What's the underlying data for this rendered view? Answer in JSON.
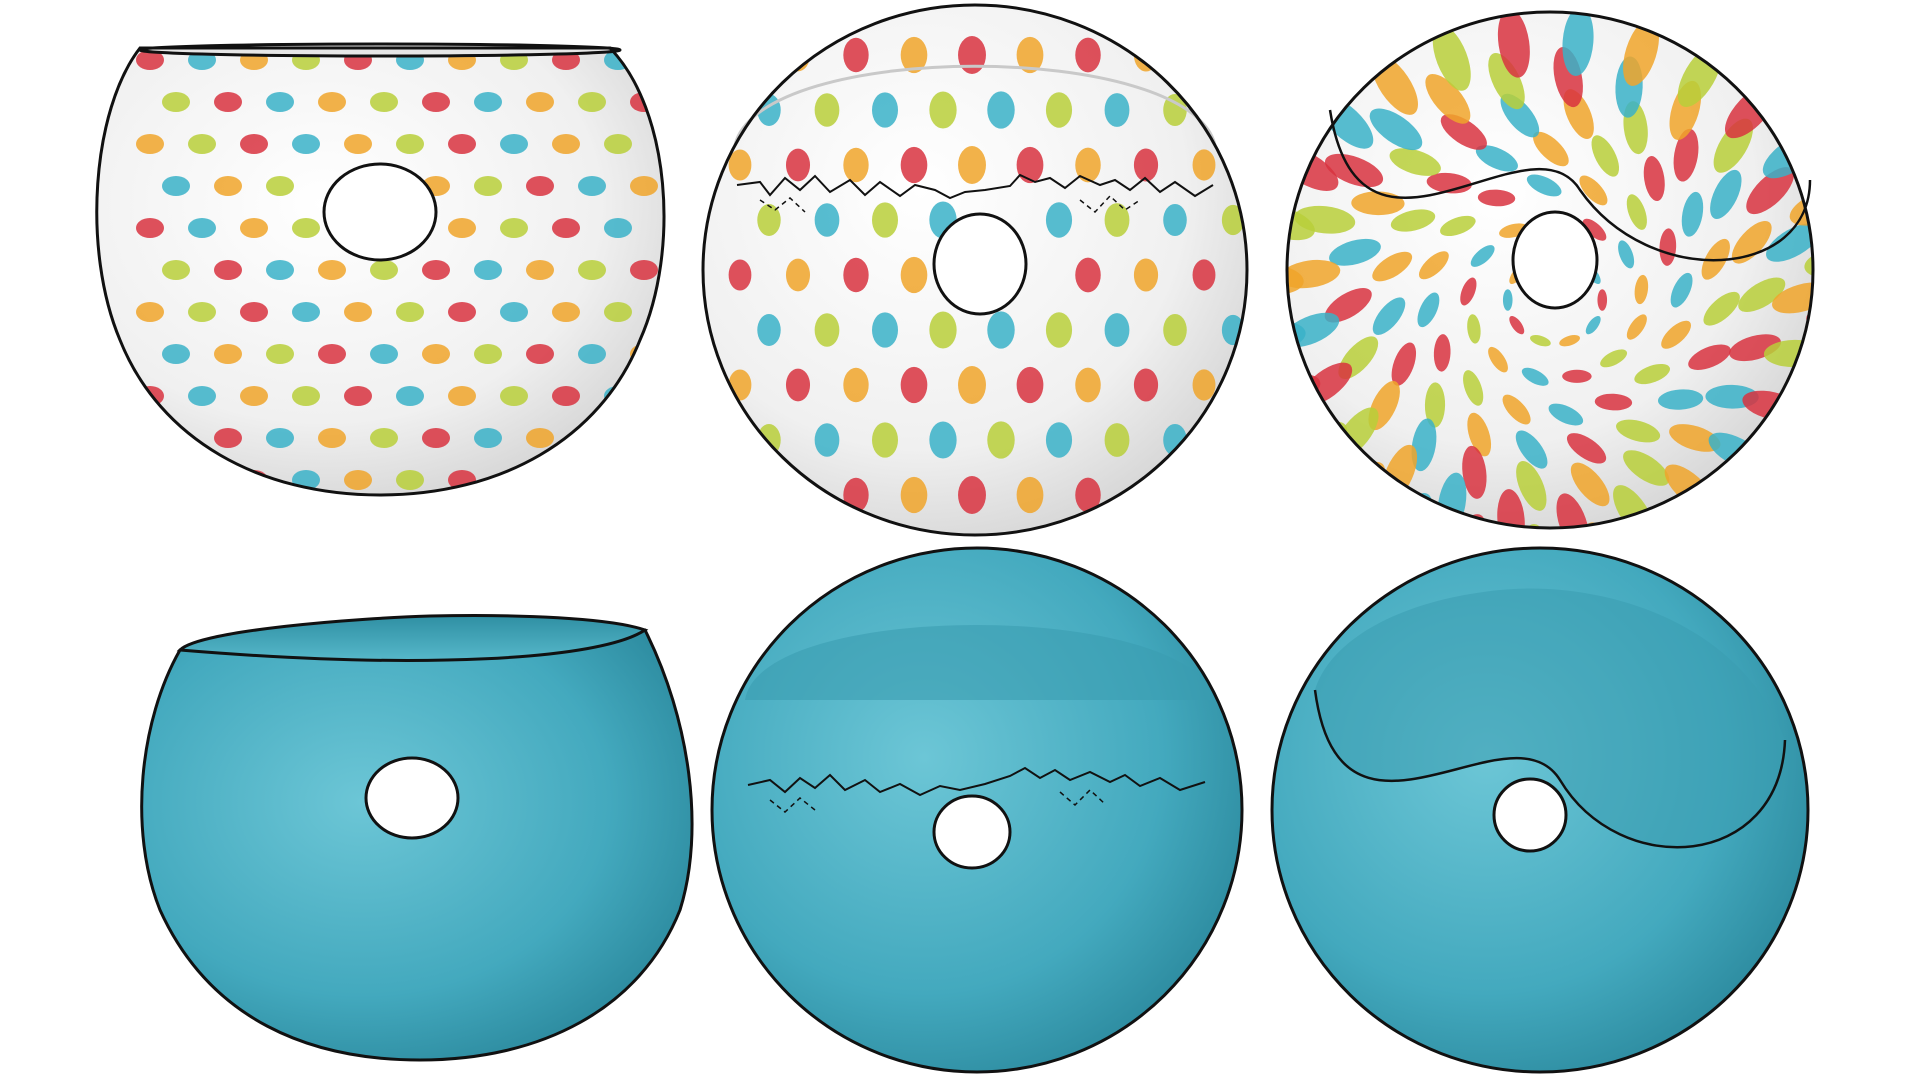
{
  "figure": {
    "background": "#ffffff",
    "rows": [
      {
        "row": "textured",
        "panels": [
          {
            "shape": "open-cup-torus",
            "texture": "polka-dots"
          },
          {
            "shape": "sphere-torus-jagged-cut",
            "texture": "polka-dots"
          },
          {
            "shape": "sphere-torus-wavy-cut",
            "texture": "polka-dots-swirl"
          }
        ]
      },
      {
        "row": "shaded",
        "panels": [
          {
            "shape": "open-cup-torus",
            "texture": "solid"
          },
          {
            "shape": "sphere-torus-jagged-cut",
            "texture": "solid"
          },
          {
            "shape": "sphere-torus-wavy-cut",
            "texture": "solid"
          }
        ]
      }
    ],
    "colors": {
      "dot_palette": [
        "#d8333f",
        "#3ab2c8",
        "#f0a42a",
        "#b8cf3a"
      ],
      "white_surface": "#f3f3f3",
      "teal_surface": "#43a9be",
      "outline": "#111111"
    }
  }
}
